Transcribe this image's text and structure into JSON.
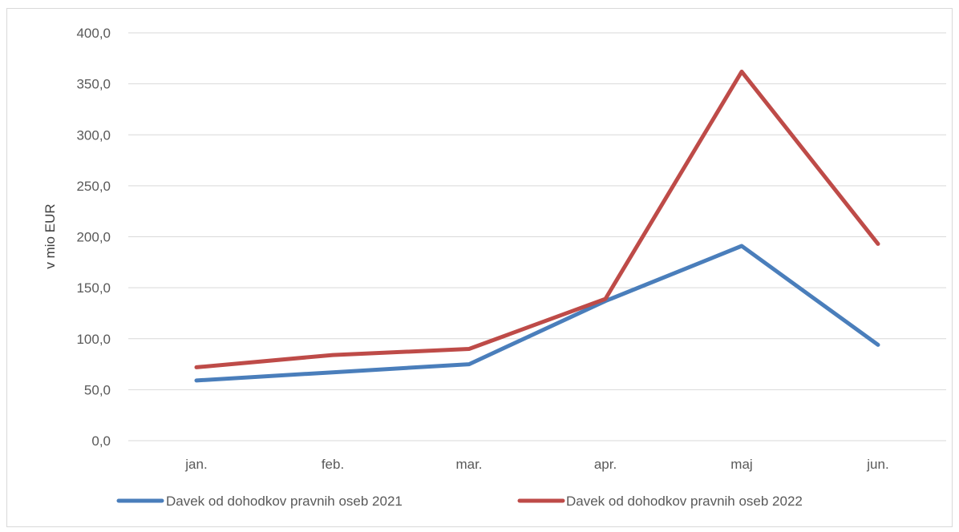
{
  "chart_data": {
    "type": "line",
    "categories": [
      "jan.",
      "feb.",
      "mar.",
      "apr.",
      "maj",
      "jun."
    ],
    "series": [
      {
        "name": "Davek od dohodkov pravnih oseb 2021",
        "color": "#4a7ebb",
        "values": [
          59,
          67,
          75,
          137,
          191,
          94
        ]
      },
      {
        "name": "Davek od dohodkov pravnih oseb 2022",
        "color": "#be4b48",
        "values": [
          72,
          84,
          90,
          139,
          362,
          193
        ]
      }
    ],
    "title": "",
    "xlabel": "",
    "ylabel": "v mio EUR",
    "ylim": [
      0,
      400
    ],
    "yticks": [
      "0,0",
      "50,0",
      "100,0",
      "150,0",
      "200,0",
      "250,0",
      "300,0",
      "350,0",
      "400,0"
    ],
    "grid": true,
    "legend": "bottom"
  }
}
